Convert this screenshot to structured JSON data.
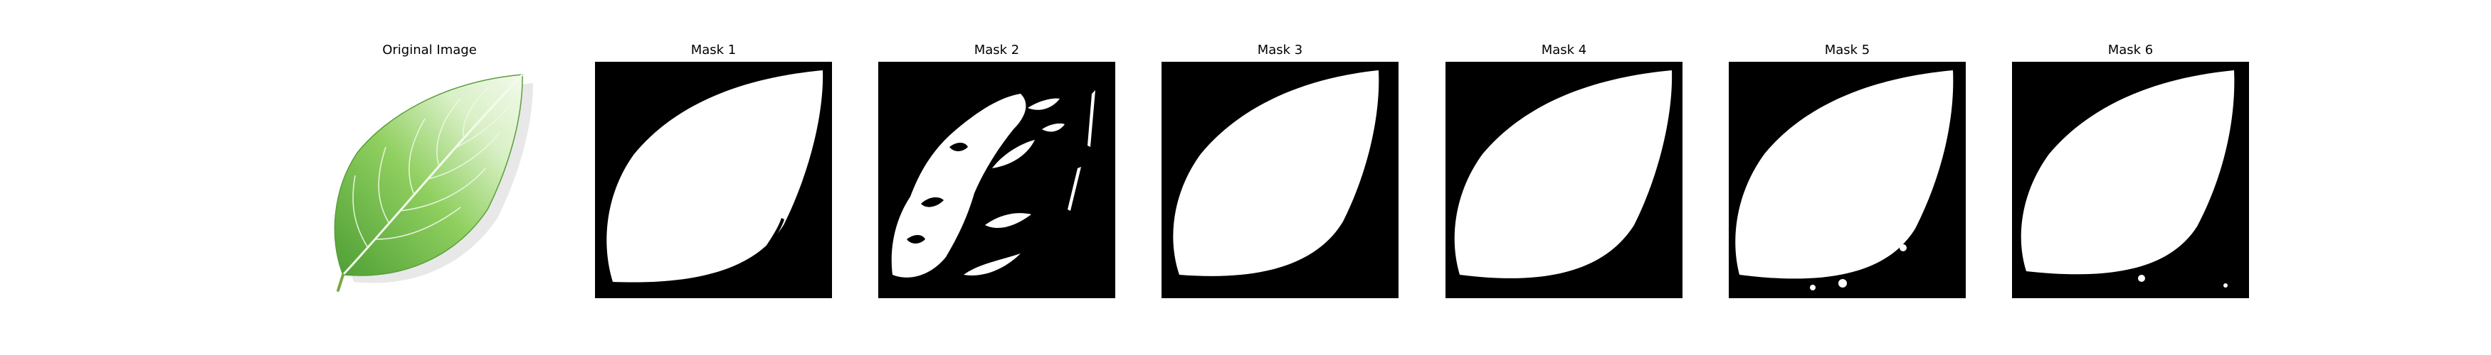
{
  "figure": {
    "panels": [
      {
        "id": "original",
        "title": "Original Image"
      },
      {
        "id": "mask1",
        "title": "Mask 1"
      },
      {
        "id": "mask2",
        "title": "Mask 2"
      },
      {
        "id": "mask3",
        "title": "Mask 3"
      },
      {
        "id": "mask4",
        "title": "Mask 4"
      },
      {
        "id": "mask5",
        "title": "Mask 5"
      },
      {
        "id": "mask6",
        "title": "Mask 6"
      }
    ]
  },
  "colors": {
    "mask_background": "#000000",
    "mask_foreground": "#ffffff",
    "leaf_light": "#e9f6dd",
    "leaf_mid": "#8fcf5f",
    "leaf_dark": "#3f8f2a"
  }
}
